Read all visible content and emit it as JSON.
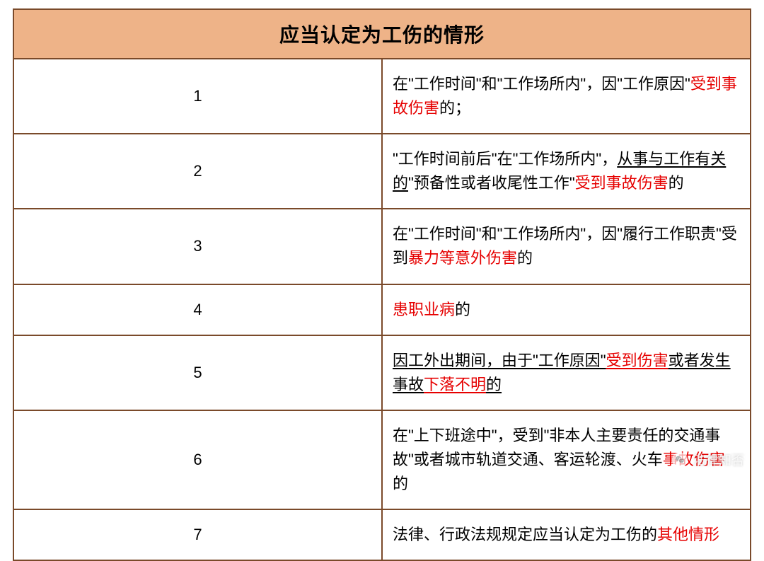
{
  "title": "应当认定为工伤的情形",
  "header_bg": "#eeb388",
  "border_color": "#7a4a2a",
  "highlight_color": "#e60000",
  "text_color": "#000000",
  "title_fontsize": 28,
  "body_fontsize": 22,
  "rows": [
    {
      "n": "1",
      "segments": [
        {
          "t": "在\"工作时间\"和\"工作场所内\"，因\"工作原因\"",
          "red": false,
          "ul": false
        },
        {
          "t": "受到事故伤害",
          "red": true,
          "ul": false
        },
        {
          "t": "的；",
          "red": false,
          "ul": false
        }
      ]
    },
    {
      "n": "2",
      "segments": [
        {
          "t": "\"工作时间前后\"在\"工作场所内\"，",
          "red": false,
          "ul": false
        },
        {
          "t": "从事与工作有关的",
          "red": false,
          "ul": true
        },
        {
          "t": "\"预备性或者收尾性工作\"",
          "red": false,
          "ul": false
        },
        {
          "t": "受到事故伤害",
          "red": true,
          "ul": false
        },
        {
          "t": "的",
          "red": false,
          "ul": false
        }
      ]
    },
    {
      "n": "3",
      "segments": [
        {
          "t": "在\"工作时间\"和\"工作场所内\"，因\"履行工作职责\"受到",
          "red": false,
          "ul": false
        },
        {
          "t": "暴力等意外伤害",
          "red": true,
          "ul": false
        },
        {
          "t": "的",
          "red": false,
          "ul": false
        }
      ]
    },
    {
      "n": "4",
      "segments": [
        {
          "t": "患职业病",
          "red": true,
          "ul": false
        },
        {
          "t": "的",
          "red": false,
          "ul": false
        }
      ]
    },
    {
      "n": "5",
      "segments": [
        {
          "t": "因工外出期间，由于\"工作原因\"",
          "red": false,
          "ul": true
        },
        {
          "t": "受到伤害",
          "red": true,
          "ul": true
        },
        {
          "t": "或者发生事故",
          "red": false,
          "ul": true
        },
        {
          "t": "下落不明",
          "red": true,
          "ul": true
        },
        {
          "t": "的",
          "red": false,
          "ul": true
        }
      ]
    },
    {
      "n": "6",
      "segments": [
        {
          "t": "在\"上下班途中\"，受到\"非本人主要责任的交通事故\"或者城市轨道交通、客运轮渡、火车",
          "red": false,
          "ul": false
        },
        {
          "t": "事故伤害",
          "red": true,
          "ul": false
        },
        {
          "t": "的",
          "red": false,
          "ul": false
        }
      ]
    },
    {
      "n": "7",
      "segments": [
        {
          "t": "法律、行政法规规定应当认定为工伤的",
          "red": false,
          "ul": false
        },
        {
          "t": "其他情形",
          "red": true,
          "ul": false
        }
      ]
    }
  ],
  "watermark": "法律知否"
}
